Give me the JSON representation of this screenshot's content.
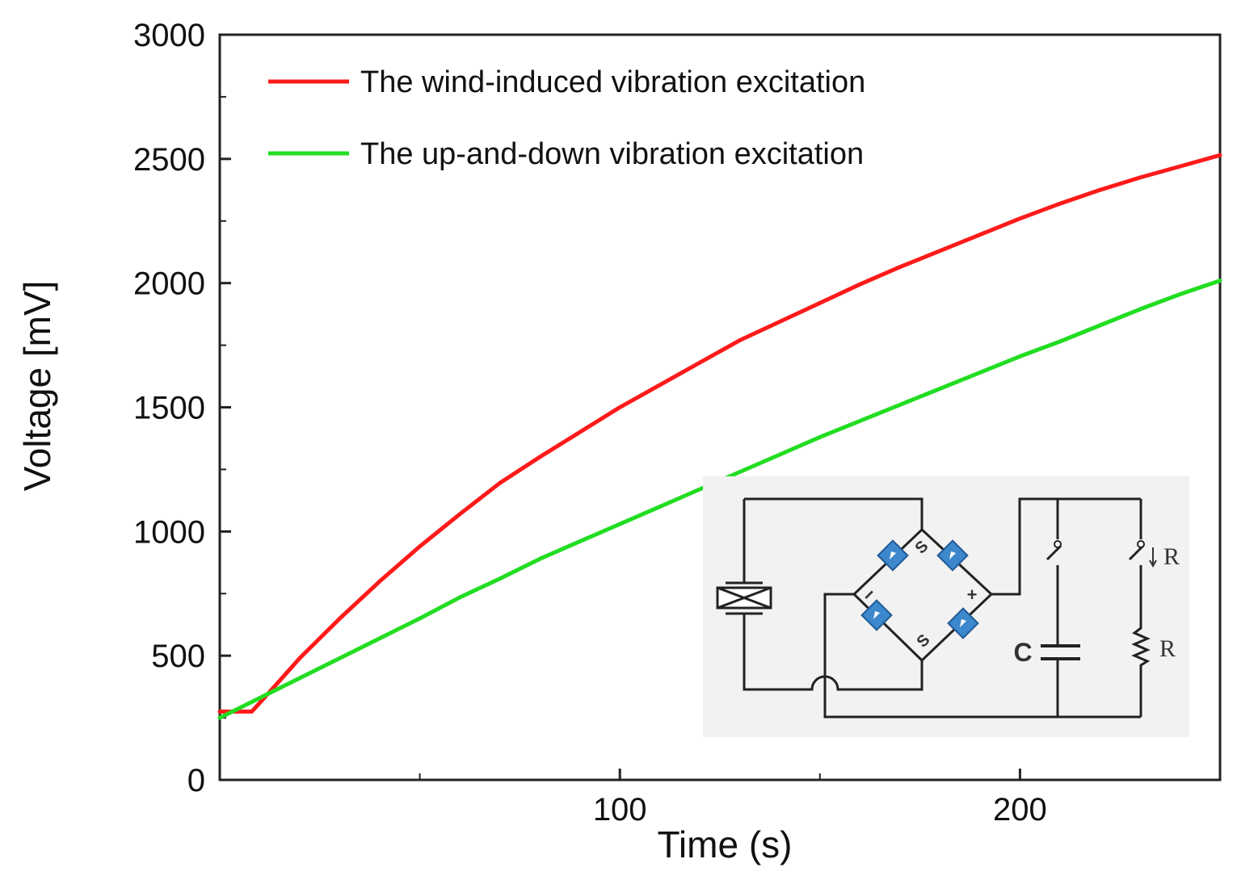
{
  "chart_data": {
    "type": "line",
    "title": "",
    "xlabel": "Time (s)",
    "ylabel": "Voltage [mV]",
    "xlim": [
      0,
      250
    ],
    "ylim": [
      0,
      3000
    ],
    "xticks": [
      100,
      200
    ],
    "xticks_minor": [
      50,
      150
    ],
    "yticks": [
      0,
      500,
      1000,
      1500,
      2000,
      2500,
      3000
    ],
    "grid": false,
    "legend_position": "top-left",
    "series": [
      {
        "name": "The wind-induced vibration excitation",
        "color": "#ff1a1a",
        "x": [
          0,
          8,
          10,
          15,
          20,
          25,
          30,
          40,
          50,
          60,
          70,
          80,
          90,
          100,
          110,
          120,
          130,
          140,
          150,
          160,
          170,
          180,
          190,
          200,
          210,
          220,
          230,
          240,
          250
        ],
        "y": [
          275,
          275,
          310,
          400,
          490,
          570,
          650,
          800,
          940,
          1070,
          1195,
          1300,
          1400,
          1500,
          1590,
          1680,
          1770,
          1845,
          1920,
          1995,
          2065,
          2130,
          2195,
          2260,
          2320,
          2375,
          2425,
          2470,
          2515
        ]
      },
      {
        "name": "The up-and-down vibration excitation",
        "color": "#22dd22",
        "x": [
          0,
          10,
          20,
          30,
          40,
          50,
          60,
          70,
          80,
          90,
          100,
          110,
          120,
          130,
          140,
          150,
          160,
          170,
          180,
          190,
          200,
          210,
          220,
          230,
          240,
          250
        ],
        "y": [
          250,
          330,
          410,
          490,
          570,
          650,
          735,
          810,
          890,
          960,
          1030,
          1100,
          1170,
          1240,
          1310,
          1380,
          1445,
          1510,
          1575,
          1640,
          1705,
          1765,
          1830,
          1895,
          1955,
          2010
        ]
      }
    ]
  },
  "inset": {
    "bridge_labels": [
      "S",
      "S",
      "−",
      "+"
    ],
    "capacitor_label": "C",
    "switch_label": "R",
    "resistor_label": "R"
  }
}
